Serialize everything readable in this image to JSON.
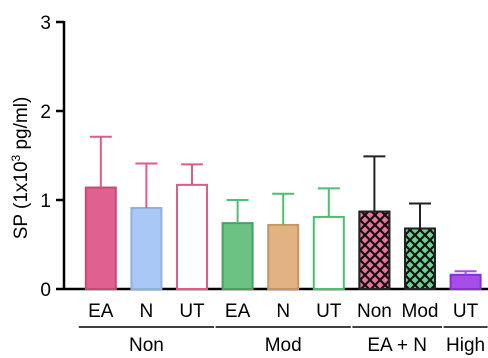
{
  "chart_data": {
    "type": "bar",
    "ylabel_main": "SP (1x10",
    "ylabel_sup": "3",
    "ylabel_tail": " pg/ml)",
    "ylim": [
      0,
      3
    ],
    "yticks": [
      "0",
      "1",
      "2",
      "3"
    ],
    "grid": false,
    "categories": [
      "EA",
      "N",
      "UT",
      "EA",
      "N",
      "UT",
      "Non",
      "Mod",
      "UT"
    ],
    "values": [
      1.14,
      0.91,
      1.17,
      0.74,
      0.72,
      0.81,
      0.87,
      0.68,
      0.16
    ],
    "errors": [
      0.57,
      0.5,
      0.23,
      0.26,
      0.35,
      0.32,
      0.62,
      0.28,
      0.04
    ],
    "bar_fill": [
      "#e0608f",
      "#a9c8f5",
      "#ffffff",
      "#6cc282",
      "#e3b283",
      "#ffffff",
      "#e8739b",
      "#6cd18f",
      "#a64ee8"
    ],
    "bar_stroke": [
      "#c44a78",
      "#8fb0e0",
      "#e05a8a",
      "#4aa063",
      "#c9955f",
      "#4cbf72",
      "#222222",
      "#222222",
      "#8a2fd0"
    ],
    "bar_pattern": [
      false,
      false,
      false,
      false,
      false,
      false,
      true,
      true,
      false
    ],
    "error_color": [
      "#e05a8a",
      "#e05a8a",
      "#e05a8a",
      "#4cbf72",
      "#4cbf72",
      "#4cbf72",
      "#222222",
      "#222222",
      "#a64ee8"
    ],
    "groups": [
      {
        "label": "Non",
        "start": 0,
        "end": 2
      },
      {
        "label": "Mod",
        "start": 3,
        "end": 5
      },
      {
        "label": "EA + N",
        "start": 6,
        "end": 7
      },
      {
        "label": "High",
        "start": 8,
        "end": 8
      }
    ]
  }
}
